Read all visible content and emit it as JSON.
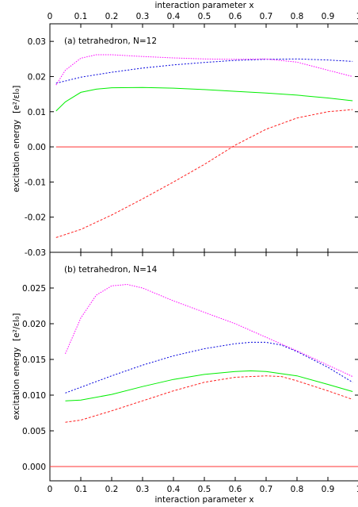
{
  "figure": {
    "top_xlabel": "interaction parameter x",
    "bottom_xlabel": "interaction parameter x"
  },
  "chart_data": [
    {
      "type": "line",
      "title": "(a) tetrahedron, N=12",
      "ylabel": "excitation energy",
      "yunit": "[e²/εl₀]",
      "xlim": [
        0,
        1
      ],
      "ylim": [
        -0.03,
        0.035
      ],
      "xticks": [
        "0",
        "0.1",
        "0.2",
        "0.3",
        "0.4",
        "0.5",
        "0.6",
        "0.7",
        "0.8",
        "0.9",
        "1"
      ],
      "yticks": [
        "-0.03",
        "-0.02",
        "-0.01",
        "0.00",
        "0.01",
        "0.02",
        "0.03"
      ],
      "ytick_values": [
        -0.03,
        -0.02,
        -0.01,
        0.0,
        0.01,
        0.02,
        0.03
      ],
      "series": [
        {
          "color": "#ff3333",
          "dash": "",
          "x": [
            0.02,
            0.98
          ],
          "y": [
            0.0,
            0.0
          ]
        },
        {
          "color": "#ff2020",
          "dash": "3,2",
          "x": [
            0.02,
            0.1,
            0.2,
            0.3,
            0.4,
            0.5,
            0.6,
            0.7,
            0.8,
            0.9,
            0.98
          ],
          "y": [
            -0.0258,
            -0.0235,
            -0.0194,
            -0.0148,
            -0.01,
            -0.005,
            0.0005,
            0.005,
            0.0082,
            0.01,
            0.0106
          ]
        },
        {
          "color": "#00ee00",
          "dash": "",
          "x": [
            0.02,
            0.05,
            0.1,
            0.15,
            0.2,
            0.3,
            0.4,
            0.5,
            0.6,
            0.7,
            0.8,
            0.9,
            0.98
          ],
          "y": [
            0.0102,
            0.0128,
            0.0155,
            0.0164,
            0.0168,
            0.0169,
            0.0167,
            0.0163,
            0.0158,
            0.0153,
            0.0147,
            0.0139,
            0.0131
          ]
        },
        {
          "color": "#0000dd",
          "dash": "2,2",
          "x": [
            0.02,
            0.1,
            0.2,
            0.3,
            0.4,
            0.5,
            0.6,
            0.7,
            0.8,
            0.9,
            0.98
          ],
          "y": [
            0.0181,
            0.0198,
            0.0212,
            0.0224,
            0.0233,
            0.024,
            0.0246,
            0.0249,
            0.025,
            0.0247,
            0.0243
          ]
        },
        {
          "color": "#ff00ff",
          "dash": "1.5,1.5",
          "x": [
            0.02,
            0.05,
            0.1,
            0.15,
            0.2,
            0.3,
            0.4,
            0.5,
            0.6,
            0.7,
            0.8,
            0.9,
            0.98
          ],
          "y": [
            0.0176,
            0.0218,
            0.0252,
            0.0262,
            0.0262,
            0.0257,
            0.0253,
            0.025,
            0.0249,
            0.025,
            0.0241,
            0.0218,
            0.02
          ]
        }
      ]
    },
    {
      "type": "line",
      "title": "(b) tetrahedron, N=14",
      "ylabel": "excitation energy",
      "yunit": "[e²/εl₀]",
      "xlim": [
        0,
        1
      ],
      "ylim": [
        -0.002,
        0.03
      ],
      "xticks": [
        "0",
        "0.1",
        "0.2",
        "0.3",
        "0.4",
        "0.5",
        "0.6",
        "0.7",
        "0.8",
        "0.9",
        "1"
      ],
      "yticks": [
        "0.000",
        "0.005",
        "0.010",
        "0.015",
        "0.020",
        "0.025"
      ],
      "ytick_values": [
        0.0,
        0.005,
        0.01,
        0.015,
        0.02,
        0.025
      ],
      "series": [
        {
          "color": "#ff3333",
          "dash": "",
          "x": [
            0.0,
            1.0
          ],
          "y": [
            0.0,
            0.0
          ]
        },
        {
          "color": "#ff2020",
          "dash": "3,2",
          "x": [
            0.05,
            0.1,
            0.2,
            0.3,
            0.4,
            0.5,
            0.6,
            0.7,
            0.75,
            0.8,
            0.9,
            0.98
          ],
          "y": [
            0.0062,
            0.0065,
            0.0078,
            0.0092,
            0.0106,
            0.0118,
            0.0125,
            0.0127,
            0.0126,
            0.012,
            0.0106,
            0.0094
          ]
        },
        {
          "color": "#00ee00",
          "dash": "",
          "x": [
            0.05,
            0.1,
            0.2,
            0.3,
            0.4,
            0.5,
            0.6,
            0.65,
            0.7,
            0.8,
            0.9,
            0.98
          ],
          "y": [
            0.0092,
            0.0093,
            0.0101,
            0.0112,
            0.0122,
            0.0129,
            0.0133,
            0.0134,
            0.0133,
            0.0127,
            0.0115,
            0.0105
          ]
        },
        {
          "color": "#0000dd",
          "dash": "2,2",
          "x": [
            0.05,
            0.1,
            0.2,
            0.3,
            0.4,
            0.5,
            0.6,
            0.65,
            0.7,
            0.75,
            0.8,
            0.9,
            0.98
          ],
          "y": [
            0.0103,
            0.0111,
            0.0127,
            0.0142,
            0.0155,
            0.0165,
            0.0172,
            0.0174,
            0.0174,
            0.017,
            0.0161,
            0.0139,
            0.0118
          ]
        },
        {
          "color": "#ff00ff",
          "dash": "1.5,1.5",
          "x": [
            0.05,
            0.1,
            0.15,
            0.2,
            0.25,
            0.3,
            0.4,
            0.5,
            0.6,
            0.7,
            0.8,
            0.9,
            0.98
          ],
          "y": [
            0.0158,
            0.0208,
            0.024,
            0.0253,
            0.0255,
            0.025,
            0.0232,
            0.0216,
            0.02,
            0.0181,
            0.0162,
            0.0142,
            0.0126
          ]
        }
      ]
    }
  ]
}
